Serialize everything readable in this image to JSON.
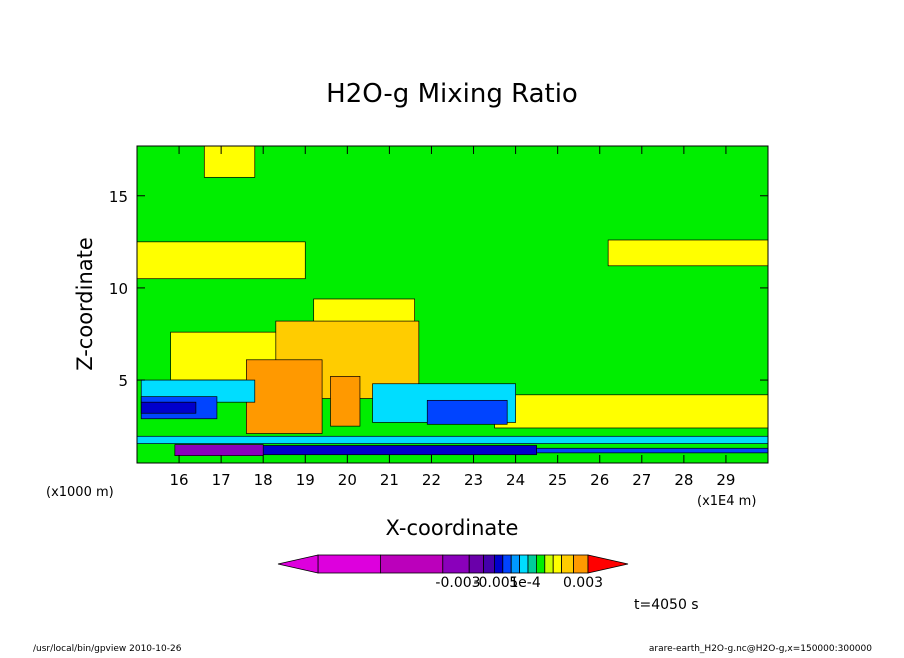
{
  "chart_data": {
    "type": "heatmap",
    "title": "H2O-g Mixing Ratio",
    "xlabel": "X-coordinate",
    "ylabel": "Z-coordinate",
    "x_unit_label": "(x1E4 m)",
    "y_unit_label": "(x1000 m)",
    "xlim": [
      15.0,
      30.0
    ],
    "ylim": [
      0.5,
      17.7
    ],
    "xticks": [
      "16",
      "17",
      "18",
      "19",
      "20",
      "21",
      "22",
      "23",
      "24",
      "25",
      "26",
      "27",
      "28",
      "29"
    ],
    "yticks": [
      "5",
      "10",
      "15"
    ],
    "time_label": "t=4050 s",
    "colorbar": {
      "colors": [
        "#dd00dd",
        "#bb00bb",
        "#8a00bb",
        "#6a00aa",
        "#4400aa",
        "#0000cc",
        "#0044ff",
        "#0099ff",
        "#00ddff",
        "#00cc99",
        "#00ee00",
        "#ccff00",
        "#ffff00",
        "#ffcc00",
        "#ff9900",
        "#ff0000"
      ],
      "tick_labels": [
        "-0.003",
        "-0.001",
        "5e-4",
        "0.003"
      ]
    },
    "regions": [
      {
        "level": "green",
        "x": [
          15.0,
          30.0
        ],
        "z": [
          0.5,
          17.7
        ]
      },
      {
        "level": "yellow",
        "x": [
          16.6,
          17.8
        ],
        "z": [
          16.0,
          17.7
        ]
      },
      {
        "level": "yellow",
        "x": [
          15.0,
          19.0
        ],
        "z": [
          10.5,
          12.5
        ]
      },
      {
        "level": "yellow",
        "x": [
          26.2,
          30.0
        ],
        "z": [
          11.2,
          12.6
        ]
      },
      {
        "level": "yellow",
        "x": [
          19.2,
          21.6
        ],
        "z": [
          8.0,
          9.4
        ]
      },
      {
        "level": "yellow",
        "x": [
          15.8,
          20.5
        ],
        "z": [
          5.0,
          7.6
        ]
      },
      {
        "level": "yellow",
        "x": [
          23.5,
          30.0
        ],
        "z": [
          2.4,
          4.2
        ]
      },
      {
        "level": "light-orange",
        "x": [
          18.3,
          21.7
        ],
        "z": [
          4.0,
          8.2
        ]
      },
      {
        "level": "orange",
        "x": [
          17.6,
          19.4
        ],
        "z": [
          2.1,
          6.1
        ]
      },
      {
        "level": "orange",
        "x": [
          19.6,
          20.3
        ],
        "z": [
          2.5,
          5.2
        ]
      },
      {
        "level": "cyan",
        "x": [
          15.1,
          17.8
        ],
        "z": [
          3.8,
          5.0
        ]
      },
      {
        "level": "cyan",
        "x": [
          20.6,
          24.0
        ],
        "z": [
          2.7,
          4.8
        ]
      },
      {
        "level": "blue",
        "x": [
          15.1,
          16.9
        ],
        "z": [
          2.9,
          4.1
        ]
      },
      {
        "level": "blue",
        "x": [
          21.9,
          23.8
        ],
        "z": [
          2.6,
          3.9
        ]
      },
      {
        "level": "dark-blue",
        "x": [
          15.1,
          16.4
        ],
        "z": [
          3.2,
          3.8
        ]
      },
      {
        "level": "cyan",
        "x": [
          15.0,
          30.0
        ],
        "z": [
          1.55,
          1.95
        ]
      },
      {
        "level": "dark-blue",
        "x": [
          16.5,
          24.5
        ],
        "z": [
          0.95,
          1.45
        ]
      },
      {
        "level": "purple",
        "x": [
          15.9,
          18.0
        ],
        "z": [
          0.9,
          1.5
        ]
      },
      {
        "level": "blue",
        "x": [
          24.5,
          30.0
        ],
        "z": [
          1.05,
          1.3
        ]
      }
    ]
  },
  "footer": {
    "left": "/usr/local/bin/gpview   2010-10-26",
    "right": "arare-earth_H2O-g.nc@H2O-g,x=150000:300000"
  }
}
